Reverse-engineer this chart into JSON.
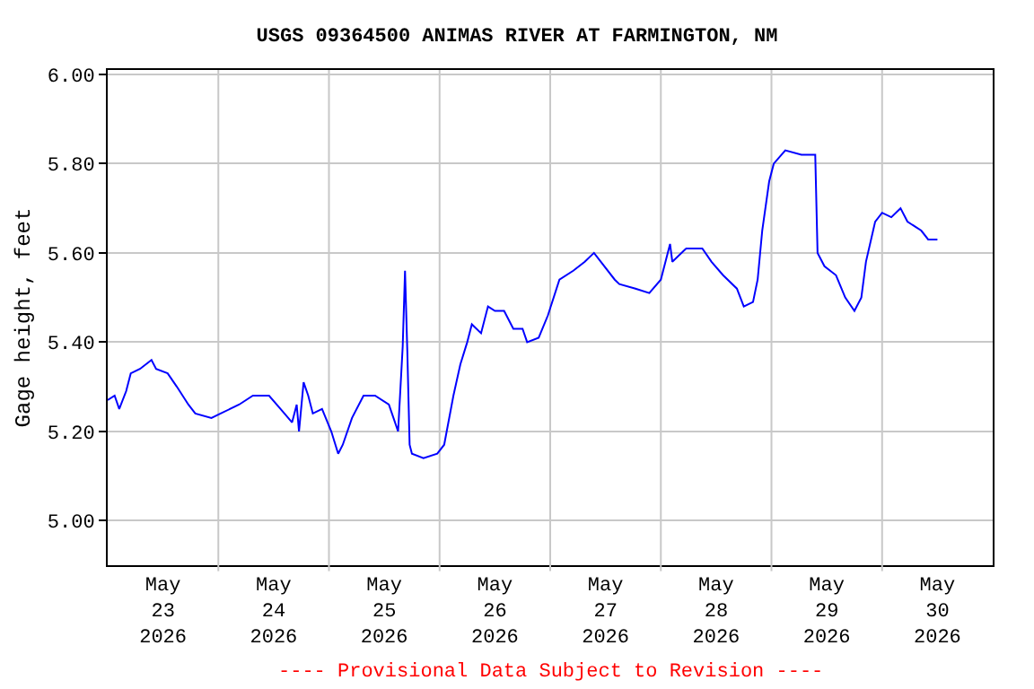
{
  "chart_data": {
    "type": "line",
    "title": "USGS 09364500 ANIMAS RIVER AT FARMINGTON, NM",
    "ylabel": "Gage height, feet",
    "annotations": [
      "---- Provisional Data Subject to Revision ----"
    ],
    "x": [
      "2026-05-23T00:00",
      "2026-05-23T01:30",
      "2026-05-23T02:30",
      "2026-05-23T04:00",
      "2026-05-23T05:00",
      "2026-05-23T07:00",
      "2026-05-23T09:30",
      "2026-05-23T10:30",
      "2026-05-23T13:00",
      "2026-05-23T15:00",
      "2026-05-23T17:30",
      "2026-05-23T19:00",
      "2026-05-23T22:30",
      "2026-05-24T00:30",
      "2026-05-24T04:30",
      "2026-05-24T07:30",
      "2026-05-24T11:00",
      "2026-05-24T13:30",
      "2026-05-24T16:00",
      "2026-05-24T17:00",
      "2026-05-24T17:30",
      "2026-05-24T18:30",
      "2026-05-24T19:30",
      "2026-05-24T20:30",
      "2026-05-24T22:30",
      "2026-05-25T00:30",
      "2026-05-25T02:00",
      "2026-05-25T03:00",
      "2026-05-25T05:00",
      "2026-05-25T07:30",
      "2026-05-25T10:00",
      "2026-05-25T13:00",
      "2026-05-25T15:00",
      "2026-05-25T16:00",
      "2026-05-25T16:30",
      "2026-05-25T17:00",
      "2026-05-25T17:30",
      "2026-05-25T18:00",
      "2026-05-25T20:30",
      "2026-05-25T23:30",
      "2026-05-26T01:00",
      "2026-05-26T03:00",
      "2026-05-26T04:30",
      "2026-05-26T06:00",
      "2026-05-26T07:00",
      "2026-05-26T09:00",
      "2026-05-26T10:30",
      "2026-05-26T12:00",
      "2026-05-26T14:00",
      "2026-05-26T16:00",
      "2026-05-26T18:00",
      "2026-05-26T19:00",
      "2026-05-26T21:30",
      "2026-05-26T23:30",
      "2026-05-27T02:00",
      "2026-05-27T05:00",
      "2026-05-27T07:30",
      "2026-05-27T09:30",
      "2026-05-27T11:00",
      "2026-05-27T14:00",
      "2026-05-27T15:00",
      "2026-05-27T18:30",
      "2026-05-27T21:30",
      "2026-05-28T00:00",
      "2026-05-28T02:00",
      "2026-05-28T02:30",
      "2026-05-28T05:30",
      "2026-05-28T09:00",
      "2026-05-28T11:00",
      "2026-05-28T13:30",
      "2026-05-28T16:30",
      "2026-05-28T18:00",
      "2026-05-28T20:00",
      "2026-05-28T21:00",
      "2026-05-28T22:00",
      "2026-05-28T23:30",
      "2026-05-29T00:30",
      "2026-05-29T03:00",
      "2026-05-29T06:30",
      "2026-05-29T09:30",
      "2026-05-29T10:00",
      "2026-05-29T11:30",
      "2026-05-29T14:00",
      "2026-05-29T16:00",
      "2026-05-29T18:00",
      "2026-05-29T19:30",
      "2026-05-29T20:30",
      "2026-05-29T22:30",
      "2026-05-30T00:00",
      "2026-05-30T02:00",
      "2026-05-30T04:00",
      "2026-05-30T05:30",
      "2026-05-30T08:30",
      "2026-05-30T10:00",
      "2026-05-30T12:00"
    ],
    "series": [
      {
        "color": "#0000ff",
        "values": [
          5.27,
          5.28,
          5.25,
          5.29,
          5.33,
          5.34,
          5.36,
          5.34,
          5.33,
          5.3,
          5.26,
          5.24,
          5.23,
          5.24,
          5.26,
          5.28,
          5.28,
          5.25,
          5.22,
          5.26,
          5.2,
          5.31,
          5.28,
          5.24,
          5.25,
          5.2,
          5.15,
          5.17,
          5.23,
          5.28,
          5.28,
          5.26,
          5.2,
          5.39,
          5.56,
          5.38,
          5.17,
          5.15,
          5.14,
          5.15,
          5.17,
          5.28,
          5.35,
          5.4,
          5.44,
          5.42,
          5.48,
          5.47,
          5.47,
          5.43,
          5.43,
          5.4,
          5.41,
          5.46,
          5.54,
          5.56,
          5.58,
          5.6,
          5.58,
          5.54,
          5.53,
          5.52,
          5.51,
          5.54,
          5.62,
          5.58,
          5.61,
          5.61,
          5.58,
          5.55,
          5.52,
          5.48,
          5.49,
          5.54,
          5.65,
          5.76,
          5.8,
          5.83,
          5.82,
          5.82,
          5.6,
          5.57,
          5.55,
          5.5,
          5.47,
          5.5,
          5.58,
          5.67,
          5.69,
          5.68,
          5.7,
          5.67,
          5.65,
          5.63,
          5.63
        ]
      }
    ],
    "xlim": [
      "2026-05-23T00:00",
      "2026-05-31T00:00"
    ],
    "xticks": [
      {
        "value": "2026-05-23T12:00",
        "label": "May\n23\n2026"
      },
      {
        "value": "2026-05-24T00:00",
        "label": null
      },
      {
        "value": "2026-05-24T12:00",
        "label": "May\n24\n2026"
      },
      {
        "value": "2026-05-25T00:00",
        "label": null
      },
      {
        "value": "2026-05-25T12:00",
        "label": "May\n25\n2026"
      },
      {
        "value": "2026-05-26T00:00",
        "label": null
      },
      {
        "value": "2026-05-26T12:00",
        "label": "May\n26\n2026"
      },
      {
        "value": "2026-05-27T00:00",
        "label": null
      },
      {
        "value": "2026-05-27T12:00",
        "label": "May\n27\n2026"
      },
      {
        "value": "2026-05-28T00:00",
        "label": null
      },
      {
        "value": "2026-05-28T12:00",
        "label": "May\n28\n2026"
      },
      {
        "value": "2026-05-29T00:00",
        "label": null
      },
      {
        "value": "2026-05-29T12:00",
        "label": "May\n29\n2026"
      },
      {
        "value": "2026-05-30T00:00",
        "label": null
      },
      {
        "value": "2026-05-30T12:00",
        "label": "May\n30\n2026"
      }
    ],
    "ylim": [
      4.9,
      6.01
    ],
    "yticks": [
      {
        "value": 5.0,
        "label": "5.00"
      },
      {
        "value": 5.2,
        "label": "5.20"
      },
      {
        "value": 5.4,
        "label": "5.40"
      },
      {
        "value": 5.6,
        "label": "5.60"
      },
      {
        "value": 5.8,
        "label": "5.80"
      },
      {
        "value": 6.0,
        "label": "6.00"
      }
    ],
    "grid": true,
    "line_style": "solid",
    "marker": "none"
  }
}
